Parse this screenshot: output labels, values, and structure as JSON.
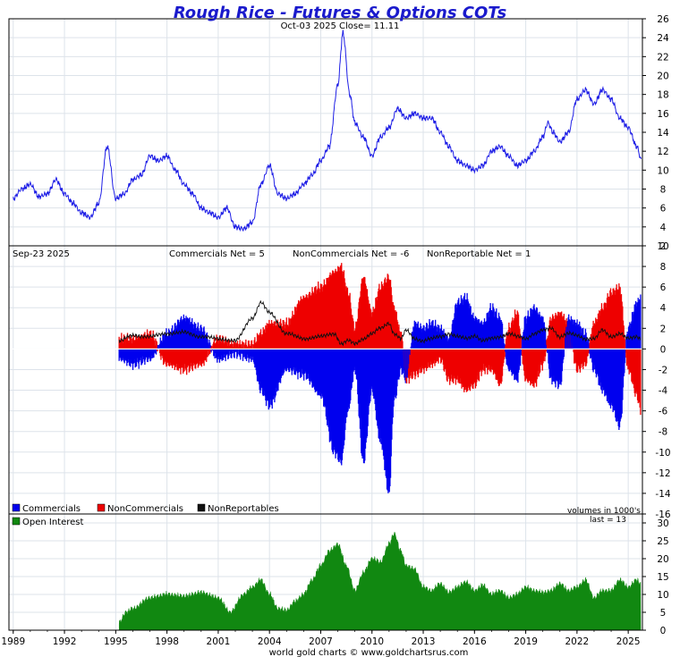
{
  "chart_data": [
    {
      "type": "line",
      "title": "Rough Rice - Futures & Options COTs",
      "subtitle": "Oct-03  2025   Close= 11.11",
      "ylim": [
        2,
        26
      ],
      "yticks": [
        2,
        4,
        6,
        8,
        10,
        12,
        14,
        16,
        18,
        20,
        22,
        24,
        26
      ],
      "color": "#1f1fe6",
      "x": [
        1989.0,
        1989.5,
        1990.0,
        1990.5,
        1991.0,
        1991.5,
        1992.0,
        1992.5,
        1993.0,
        1993.5,
        1994.0,
        1994.5,
        1995.0,
        1995.5,
        1996.0,
        1996.5,
        1997.0,
        1997.5,
        1998.0,
        1998.5,
        1999.0,
        1999.5,
        2000.0,
        2000.5,
        2001.0,
        2001.5,
        2002.0,
        2002.5,
        2003.0,
        2003.5,
        2004.0,
        2004.5,
        2005.0,
        2005.5,
        2006.0,
        2006.5,
        2007.0,
        2007.5,
        2008.0,
        2008.3,
        2008.7,
        2009.0,
        2009.5,
        2010.0,
        2010.5,
        2011.0,
        2011.5,
        2012.0,
        2012.5,
        2013.0,
        2013.5,
        2014.0,
        2014.5,
        2015.0,
        2015.5,
        2016.0,
        2016.5,
        2017.0,
        2017.5,
        2018.0,
        2018.5,
        2019.0,
        2019.5,
        2020.0,
        2020.3,
        2020.6,
        2021.0,
        2021.5,
        2022.0,
        2022.5,
        2023.0,
        2023.5,
        2024.0,
        2024.5,
        2025.0,
        2025.5,
        2025.76
      ],
      "values": [
        7.0,
        8.0,
        8.5,
        7.2,
        7.5,
        9.0,
        7.5,
        6.5,
        5.5,
        5.0,
        6.5,
        12.5,
        7.0,
        7.5,
        9.0,
        9.5,
        11.5,
        11.0,
        11.5,
        10.0,
        8.5,
        7.5,
        6.0,
        5.5,
        5.0,
        6.0,
        4.0,
        3.8,
        4.5,
        8.5,
        10.5,
        7.5,
        7.0,
        7.5,
        8.5,
        9.5,
        11.0,
        12.5,
        19.0,
        24.5,
        18.0,
        15.0,
        13.5,
        11.5,
        13.5,
        14.5,
        16.5,
        15.5,
        16.0,
        15.5,
        15.5,
        14.0,
        12.5,
        11.0,
        10.5,
        10.0,
        10.5,
        12.0,
        12.5,
        11.5,
        10.5,
        11.0,
        12.0,
        13.5,
        15.0,
        14.0,
        13.0,
        14.0,
        17.5,
        18.5,
        17.0,
        18.5,
        17.5,
        15.5,
        14.5,
        12.5,
        11.11
      ]
    },
    {
      "type": "area",
      "subtitle": "Sep-23  2025",
      "annotations": [
        "Commercials Net = 5",
        "NonCommercials Net = -6",
        "NonReportable Net = 1"
      ],
      "ylim": [
        -16,
        10
      ],
      "yticks": [
        -16,
        -14,
        -12,
        -10,
        -8,
        -6,
        -4,
        -2,
        0,
        2,
        4,
        6,
        8,
        10
      ],
      "legend": [
        "Commercials",
        "NonCommercials",
        "NonReportables"
      ],
      "legend_colors": [
        "#0000ee",
        "#ee0000",
        "#111111"
      ],
      "x": [
        1995.2,
        1996.0,
        1997.0,
        1998.0,
        1999.0,
        2000.0,
        2001.0,
        2002.0,
        2003.0,
        2003.5,
        2004.0,
        2005.0,
        2006.0,
        2007.0,
        2007.8,
        2008.2,
        2008.6,
        2009.0,
        2009.5,
        2010.0,
        2010.5,
        2011.0,
        2011.3,
        2011.7,
        2012.0,
        2012.5,
        2013.0,
        2013.5,
        2014.0,
        2014.5,
        2015.0,
        2015.5,
        2016.0,
        2016.5,
        2017.0,
        2017.5,
        2018.0,
        2018.5,
        2019.0,
        2019.5,
        2020.0,
        2020.5,
        2021.0,
        2021.5,
        2022.0,
        2022.5,
        2023.0,
        2023.5,
        2024.0,
        2024.5,
        2025.0,
        2025.5,
        2025.73
      ],
      "series": [
        {
          "name": "Commercials",
          "values": [
            -1.0,
            -1.5,
            -1.0,
            1.5,
            3.0,
            2.0,
            -1.0,
            -0.5,
            -1.0,
            -4.0,
            -5.5,
            -2.0,
            -2.5,
            -4.5,
            -10.0,
            -11.0,
            -6.0,
            -2.0,
            -11.0,
            -4.0,
            -9.0,
            -14.0,
            -5.0,
            -2.0,
            -3.0,
            2.5,
            2.0,
            2.5,
            2.0,
            1.0,
            4.5,
            5.0,
            3.0,
            2.5,
            4.0,
            3.0,
            -2.0,
            -3.0,
            3.0,
            4.0,
            3.0,
            -3.0,
            -3.5,
            3.0,
            2.5,
            1.5,
            -2.0,
            -4.0,
            -5.5,
            -7.5,
            2.0,
            4.5,
            5.0
          ]
        },
        {
          "name": "NonCommercials",
          "values": [
            1.0,
            1.0,
            1.5,
            -1.5,
            -2.0,
            -1.5,
            1.0,
            0.5,
            0.5,
            1.5,
            2.5,
            2.5,
            5.0,
            6.0,
            7.5,
            8.0,
            5.5,
            2.0,
            7.0,
            3.5,
            6.0,
            7.0,
            4.0,
            1.5,
            -3.0,
            -2.5,
            -2.0,
            -1.5,
            -1.0,
            -3.0,
            -3.0,
            -4.0,
            -3.5,
            -2.0,
            -2.0,
            -3.5,
            2.0,
            3.5,
            -3.0,
            -3.5,
            -1.5,
            3.0,
            3.5,
            2.5,
            -2.0,
            -1.5,
            2.5,
            4.0,
            5.5,
            6.0,
            -2.0,
            -4.5,
            -6.0
          ]
        },
        {
          "name": "NonReportables",
          "values": [
            0.8,
            1.3,
            1.2,
            1.5,
            1.6,
            1.2,
            1.0,
            0.8,
            3.0,
            4.5,
            3.5,
            1.5,
            1.0,
            1.2,
            1.5,
            0.5,
            0.8,
            0.5,
            1.0,
            1.5,
            2.0,
            2.5,
            1.5,
            1.0,
            1.8,
            1.0,
            0.8,
            1.0,
            1.2,
            1.5,
            1.2,
            1.0,
            1.3,
            0.8,
            1.0,
            1.2,
            1.5,
            1.2,
            1.0,
            1.5,
            1.8,
            2.0,
            1.2,
            1.5,
            1.3,
            1.0,
            1.0,
            1.8,
            1.2,
            1.5,
            1.0,
            1.2,
            1.0
          ]
        }
      ]
    },
    {
      "type": "area",
      "legend": [
        "Open Interest"
      ],
      "legend_colors": [
        "#118811"
      ],
      "annotations": [
        "volumes in 1000's",
        "last = 13"
      ],
      "ylim": [
        0,
        32.5
      ],
      "yticks": [
        0,
        5,
        10,
        15,
        20,
        25,
        30
      ],
      "x": [
        1995.2,
        1995.6,
        1996.0,
        1997.0,
        1998.0,
        1999.0,
        2000.0,
        2001.0,
        2001.7,
        2002.5,
        2003.0,
        2003.5,
        2004.0,
        2004.5,
        2005.0,
        2005.5,
        2006.0,
        2006.5,
        2007.0,
        2007.5,
        2008.0,
        2008.5,
        2009.0,
        2009.5,
        2010.0,
        2010.5,
        2011.0,
        2011.3,
        2011.7,
        2012.0,
        2012.5,
        2013.0,
        2013.5,
        2014.0,
        2014.5,
        2015.0,
        2015.5,
        2016.0,
        2016.5,
        2017.0,
        2017.5,
        2018.0,
        2018.5,
        2019.0,
        2019.5,
        2020.0,
        2020.5,
        2021.0,
        2021.5,
        2022.0,
        2022.5,
        2023.0,
        2023.5,
        2024.0,
        2024.5,
        2025.0,
        2025.5,
        2025.73
      ],
      "series": [
        {
          "name": "Open Interest",
          "values": [
            2.0,
            5.0,
            6.0,
            9.0,
            10.0,
            9.5,
            10.5,
            9.0,
            5.0,
            10.0,
            12.0,
            14.0,
            10.0,
            6.0,
            5.5,
            8.0,
            10.0,
            14.0,
            18.0,
            22.0,
            24.0,
            18.0,
            11.0,
            16.0,
            20.0,
            19.0,
            24.0,
            27.0,
            22.0,
            18.0,
            17.0,
            12.0,
            11.0,
            13.0,
            10.5,
            12.0,
            13.5,
            11.0,
            12.5,
            10.0,
            11.0,
            9.0,
            10.0,
            12.0,
            11.0,
            10.5,
            11.0,
            13.0,
            11.0,
            12.0,
            14.0,
            9.0,
            11.0,
            11.0,
            14.0,
            12.0,
            14.0,
            13.0
          ]
        }
      ]
    }
  ],
  "xaxis": {
    "range": [
      1988.75,
      2025.83
    ],
    "ticks": [
      1989,
      1992,
      1995,
      1998,
      2001,
      2004,
      2007,
      2010,
      2013,
      2016,
      2019,
      2022,
      2025
    ]
  },
  "footer": "world gold charts © www.goldchartsrus.com"
}
